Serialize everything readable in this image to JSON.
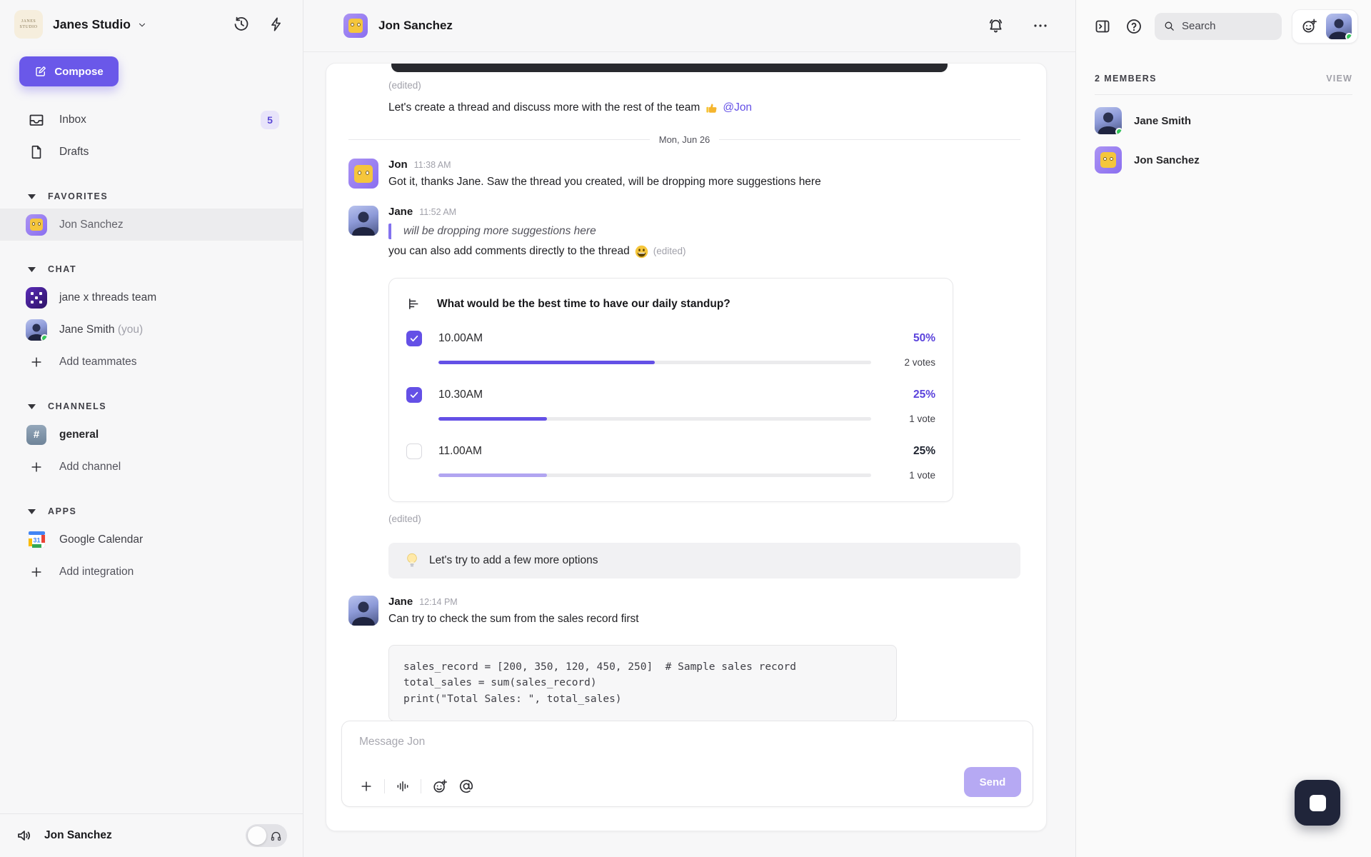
{
  "workspace": {
    "name": "Janes Studio",
    "logo_text": "JANES STUDIO"
  },
  "sidebar": {
    "compose_label": "Compose",
    "inbox_label": "Inbox",
    "inbox_badge": "5",
    "drafts_label": "Drafts",
    "sections": {
      "favorites": {
        "title": "FAVORITES",
        "item_jon": "Jon Sanchez"
      },
      "chat": {
        "title": "CHAT",
        "item_team": "jane x threads team",
        "item_self": "Jane Smith",
        "item_self_suffix": "(you)",
        "add": "Add teammates"
      },
      "channels": {
        "title": "CHANNELS",
        "item_general": "general",
        "add": "Add channel"
      },
      "apps": {
        "title": "APPS",
        "item_gcal": "Google Calendar",
        "gcal_day": "31",
        "add": "Add integration"
      }
    },
    "footer": {
      "user": "Jon Sanchez"
    }
  },
  "header": {
    "title": "Jon Sanchez"
  },
  "chat": {
    "intro": {
      "edited": "(edited)",
      "text": "Let's create a thread and discuss more with the rest of the team",
      "mention": "@Jon"
    },
    "date_divider": "Mon, Jun 26",
    "msg1": {
      "author": "Jon",
      "time": "11:38 AM",
      "text": "Got it, thanks Jane. Saw the thread you created, will be dropping more suggestions here"
    },
    "msg2": {
      "author": "Jane",
      "time": "11:52 AM",
      "quote": "will be dropping more suggestions here",
      "text": "you can also add comments directly to the thread",
      "edited": "(edited)"
    },
    "poll": {
      "question": "What would be the best time to have our daily standup?",
      "options": [
        {
          "label": "10.00AM",
          "percent": "50%",
          "votes": "2 votes",
          "checked": true,
          "fill": 50
        },
        {
          "label": "10.30AM",
          "percent": "25%",
          "votes": "1 vote",
          "checked": true,
          "fill": 25
        },
        {
          "label": "11.00AM",
          "percent": "25%",
          "votes": "1 vote",
          "checked": false,
          "fill": 25
        }
      ]
    },
    "poll_edited": "(edited)",
    "callout": "Let's try to add a few more options",
    "msg3": {
      "author": "Jane",
      "time": "12:14 PM",
      "text": "Can try to check the sum from the sales record first"
    },
    "code_lines": [
      "sales_record = [200, 350, 120, 450, 250]  # Sample sales record",
      "total_sales = sum(sales_record)",
      "print(\"Total Sales: \", total_sales)"
    ]
  },
  "composer": {
    "placeholder": "Message Jon",
    "send_label": "Send"
  },
  "right_panel": {
    "search_placeholder": "Search",
    "members_header": "2 MEMBERS",
    "view_label": "VIEW",
    "member1": "Jane Smith",
    "member2": "Jon Sanchez"
  },
  "icons": {
    "thumbs_up_emoji": "👍",
    "grinning_emoji": "😃",
    "bulb_emoji": "💡",
    "jon_avatar_emoji": "🫨"
  },
  "colors": {
    "accent_purple": "#6450e6",
    "compose_purple": "#6a58e9",
    "send_disabled": "#b6a9f3",
    "poll_fill_light": "#b1a5f1",
    "badge_bg": "#e8e4fa",
    "badge_text": "#5b49d6",
    "online_green": "#34c759",
    "stop_button_bg": "#20253a",
    "sidebar_bg": "#f7f7f8",
    "card_bg": "#ffffff"
  }
}
